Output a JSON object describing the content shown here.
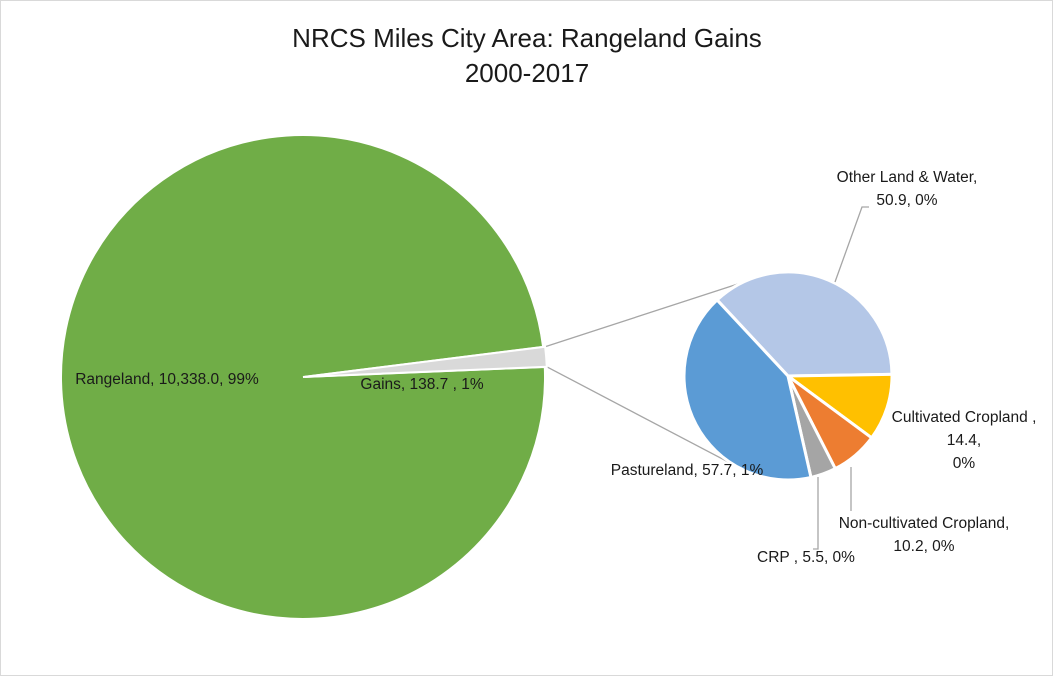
{
  "chart_data": {
    "type": "pie",
    "subtype": "pie-of-pie",
    "title": [
      "NRCS Miles City Area: Rangeland Gains",
      "2000-2017"
    ],
    "main_pie": {
      "slices": [
        {
          "key": "rangeland",
          "value": 10338.0,
          "color": "#70ad47",
          "label": [
            "Rangeland, 10,338.0, 99%"
          ]
        },
        {
          "key": "gains",
          "value": 138.7,
          "color": "#d9d9d9",
          "label": [
            "Gains, 138.7 , 1%"
          ]
        }
      ]
    },
    "secondary_pie": {
      "slices": [
        {
          "key": "other-land-water",
          "value": 50.9,
          "color": "#b4c7e7",
          "label": [
            "Other Land & Water,",
            "50.9, 0%"
          ]
        },
        {
          "key": "cultivated-cropland",
          "value": 14.4,
          "color": "#ffc000",
          "label": [
            "Cultivated Cropland ,",
            "14.4,",
            "0%"
          ]
        },
        {
          "key": "non-cultivated-cropland",
          "value": 10.2,
          "color": "#ed7d31",
          "label": [
            "Non-cultivated Cropland,",
            "10.2, 0%"
          ]
        },
        {
          "key": "crp",
          "value": 5.5,
          "color": "#a5a5a5",
          "label": [
            "CRP , 5.5, 0%"
          ]
        },
        {
          "key": "pastureland",
          "value": 57.7,
          "color": "#5b9bd5",
          "label": [
            "Pastureland, 57.7, 1%"
          ]
        }
      ]
    },
    "legend": "none"
  }
}
